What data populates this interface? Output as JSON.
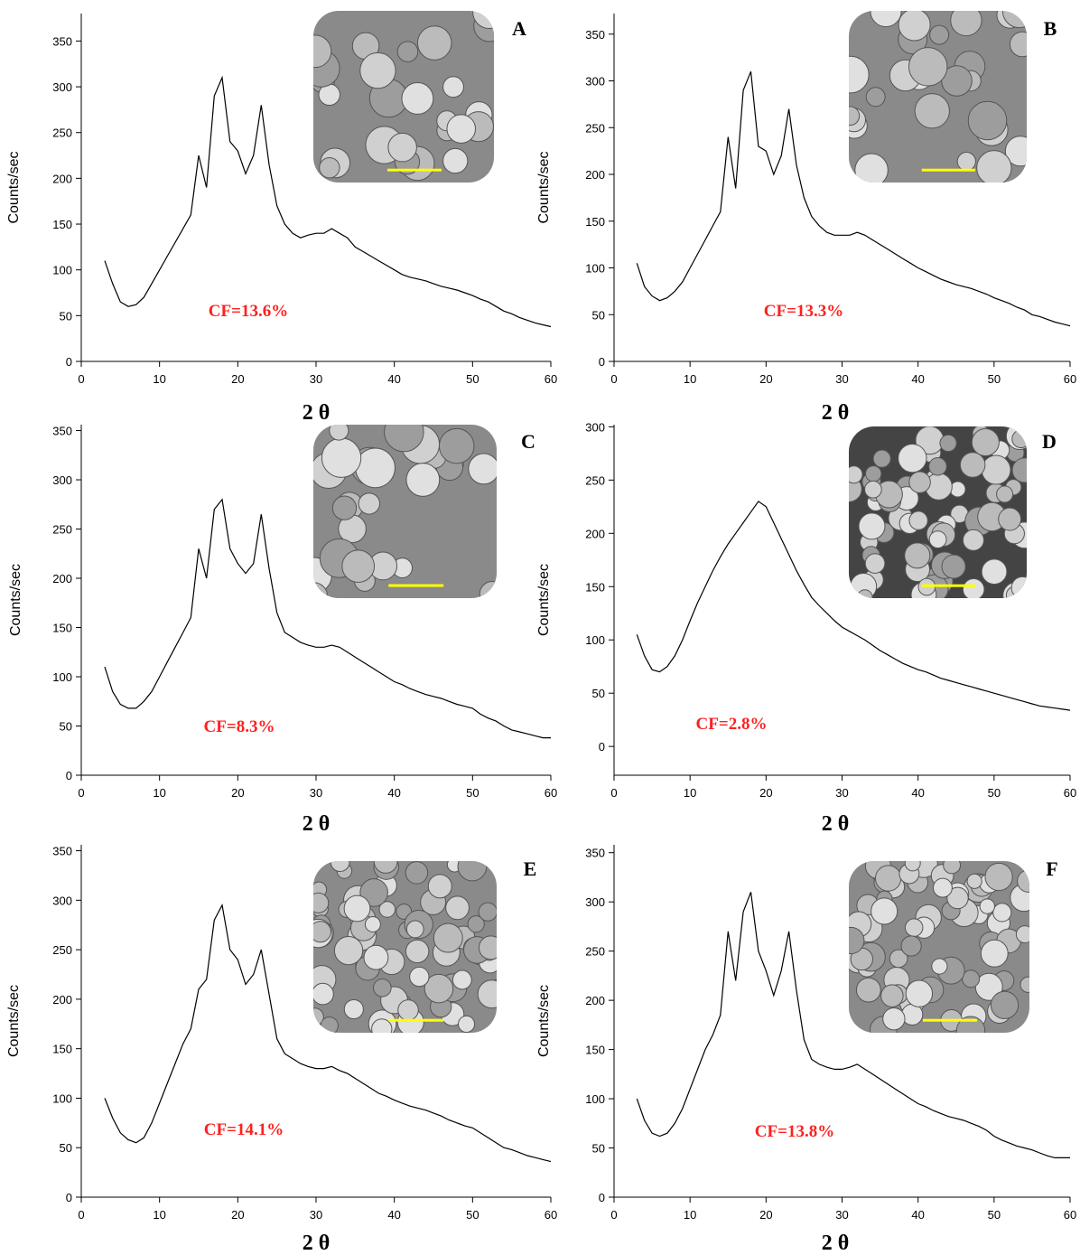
{
  "chart_data": [
    {
      "type": "line",
      "panel_label": "A",
      "annotation": "CF=13.6%",
      "y_label": "Counts/sec",
      "x_label": "2 θ",
      "x": [
        3,
        4,
        5,
        6,
        7,
        8,
        9,
        10,
        11,
        12,
        13,
        14,
        15,
        16,
        17,
        18,
        19,
        20,
        21,
        22,
        23,
        24,
        25,
        26,
        27,
        28,
        29,
        30,
        31,
        32,
        33,
        34,
        35,
        36,
        37,
        38,
        39,
        40,
        41,
        42,
        43,
        44,
        45,
        46,
        47,
        48,
        49,
        50,
        51,
        52,
        53,
        54,
        55,
        56,
        57,
        58,
        59,
        60
      ],
      "series": [
        {
          "color": "#000000",
          "values": [
            110,
            85,
            65,
            60,
            62,
            70,
            85,
            100,
            115,
            130,
            145,
            160,
            225,
            190,
            290,
            310,
            240,
            230,
            205,
            225,
            280,
            215,
            170,
            150,
            140,
            135,
            138,
            140,
            140,
            145,
            140,
            135,
            125,
            120,
            115,
            110,
            105,
            100,
            95,
            92,
            90,
            88,
            85,
            82,
            80,
            78,
            75,
            72,
            68,
            65,
            60,
            55,
            52,
            48,
            45,
            42,
            40,
            38
          ]
        }
      ],
      "xlim": [
        0,
        60
      ],
      "ylim": [
        0,
        380
      ],
      "xticks": [
        0,
        10,
        20,
        30,
        40,
        50,
        60
      ],
      "yticks": [
        0,
        50,
        100,
        150,
        200,
        250,
        300,
        350
      ]
    },
    {
      "type": "line",
      "panel_label": "B",
      "annotation": "CF=13.3%",
      "y_label": "Counts/sec",
      "x_label": "2 θ",
      "x": [
        3,
        4,
        5,
        6,
        7,
        8,
        9,
        10,
        11,
        12,
        13,
        14,
        15,
        16,
        17,
        18,
        19,
        20,
        21,
        22,
        23,
        24,
        25,
        26,
        27,
        28,
        29,
        30,
        31,
        32,
        33,
        34,
        35,
        36,
        37,
        38,
        39,
        40,
        41,
        42,
        43,
        44,
        45,
        46,
        47,
        48,
        49,
        50,
        51,
        52,
        53,
        54,
        55,
        56,
        57,
        58,
        59,
        60
      ],
      "series": [
        {
          "color": "#000000",
          "values": [
            105,
            80,
            70,
            65,
            68,
            75,
            85,
            100,
            115,
            130,
            145,
            160,
            240,
            185,
            290,
            310,
            230,
            225,
            200,
            220,
            270,
            210,
            175,
            155,
            145,
            138,
            135,
            135,
            135,
            138,
            135,
            130,
            125,
            120,
            115,
            110,
            105,
            100,
            96,
            92,
            88,
            85,
            82,
            80,
            78,
            75,
            72,
            68,
            65,
            62,
            58,
            55,
            50,
            48,
            45,
            42,
            40,
            38
          ]
        }
      ],
      "xlim": [
        0,
        60
      ],
      "ylim": [
        0,
        372
      ],
      "xticks": [
        0,
        10,
        20,
        30,
        40,
        50,
        60
      ],
      "yticks": [
        0,
        50,
        100,
        150,
        200,
        250,
        300,
        350
      ]
    },
    {
      "type": "line",
      "panel_label": "C",
      "annotation": "CF=8.3%",
      "y_label": "Counts/sec",
      "x_label": "2 θ",
      "x": [
        3,
        4,
        5,
        6,
        7,
        8,
        9,
        10,
        11,
        12,
        13,
        14,
        15,
        16,
        17,
        18,
        19,
        20,
        21,
        22,
        23,
        24,
        25,
        26,
        27,
        28,
        29,
        30,
        31,
        32,
        33,
        34,
        35,
        36,
        37,
        38,
        39,
        40,
        41,
        42,
        43,
        44,
        45,
        46,
        47,
        48,
        49,
        50,
        51,
        52,
        53,
        54,
        55,
        56,
        57,
        58,
        59,
        60
      ],
      "series": [
        {
          "color": "#000000",
          "values": [
            110,
            85,
            72,
            68,
            68,
            75,
            85,
            100,
            115,
            130,
            145,
            160,
            230,
            200,
            270,
            280,
            230,
            215,
            205,
            215,
            265,
            210,
            165,
            145,
            140,
            135,
            132,
            130,
            130,
            132,
            130,
            125,
            120,
            115,
            110,
            105,
            100,
            95,
            92,
            88,
            85,
            82,
            80,
            78,
            75,
            72,
            70,
            68,
            62,
            58,
            55,
            50,
            46,
            44,
            42,
            40,
            38,
            38
          ]
        }
      ],
      "xlim": [
        0,
        60
      ],
      "ylim": [
        0,
        356
      ],
      "xticks": [
        0,
        10,
        20,
        30,
        40,
        50,
        60
      ],
      "yticks": [
        0,
        50,
        100,
        150,
        200,
        250,
        300,
        350
      ]
    },
    {
      "type": "line",
      "panel_label": "D",
      "annotation": "CF=2.8%",
      "y_label": "Counts/sec",
      "x_label": "2 θ",
      "x": [
        3,
        4,
        5,
        6,
        7,
        8,
        9,
        10,
        11,
        12,
        13,
        14,
        15,
        16,
        17,
        18,
        19,
        20,
        21,
        22,
        23,
        24,
        25,
        26,
        27,
        28,
        29,
        30,
        31,
        32,
        33,
        34,
        35,
        36,
        37,
        38,
        39,
        40,
        41,
        42,
        43,
        44,
        45,
        46,
        47,
        48,
        49,
        50,
        51,
        52,
        53,
        54,
        55,
        56,
        57,
        58,
        59,
        60
      ],
      "series": [
        {
          "color": "#000000",
          "values": [
            105,
            85,
            72,
            70,
            75,
            85,
            100,
            118,
            135,
            150,
            165,
            178,
            190,
            200,
            210,
            220,
            230,
            225,
            210,
            195,
            180,
            165,
            152,
            140,
            132,
            125,
            118,
            112,
            108,
            104,
            100,
            95,
            90,
            86,
            82,
            78,
            75,
            72,
            70,
            67,
            64,
            62,
            60,
            58,
            56,
            54,
            52,
            50,
            48,
            46,
            44,
            42,
            40,
            38,
            37,
            36,
            35,
            34
          ]
        }
      ],
      "xlim": [
        0,
        60
      ],
      "ylim": [
        -27,
        302
      ],
      "xticks": [
        0,
        10,
        20,
        30,
        40,
        50,
        60
      ],
      "yticks": [
        0,
        50,
        100,
        150,
        200,
        250,
        300
      ]
    },
    {
      "type": "line",
      "panel_label": "E",
      "annotation": "CF=14.1%",
      "y_label": "Counts/sec",
      "x_label": "2 θ",
      "x": [
        3,
        4,
        5,
        6,
        7,
        8,
        9,
        10,
        11,
        12,
        13,
        14,
        15,
        16,
        17,
        18,
        19,
        20,
        21,
        22,
        23,
        24,
        25,
        26,
        27,
        28,
        29,
        30,
        31,
        32,
        33,
        34,
        35,
        36,
        37,
        38,
        39,
        40,
        41,
        42,
        43,
        44,
        45,
        46,
        47,
        48,
        49,
        50,
        51,
        52,
        53,
        54,
        55,
        56,
        57,
        58,
        59,
        60
      ],
      "series": [
        {
          "color": "#000000",
          "values": [
            100,
            80,
            65,
            58,
            55,
            60,
            75,
            95,
            115,
            135,
            155,
            170,
            210,
            220,
            280,
            295,
            250,
            240,
            215,
            225,
            250,
            205,
            160,
            145,
            140,
            135,
            132,
            130,
            130,
            132,
            128,
            125,
            120,
            115,
            110,
            105,
            102,
            98,
            95,
            92,
            90,
            88,
            85,
            82,
            78,
            75,
            72,
            70,
            65,
            60,
            55,
            50,
            48,
            45,
            42,
            40,
            38,
            36
          ]
        }
      ],
      "xlim": [
        0,
        60
      ],
      "ylim": [
        0,
        356
      ],
      "xticks": [
        0,
        10,
        20,
        30,
        40,
        50,
        60
      ],
      "yticks": [
        0,
        50,
        100,
        150,
        200,
        250,
        300,
        350
      ]
    },
    {
      "type": "line",
      "panel_label": "F",
      "annotation": "CF=13.8%",
      "y_label": "Counts/sec",
      "x_label": "2 θ",
      "x": [
        3,
        4,
        5,
        6,
        7,
        8,
        9,
        10,
        11,
        12,
        13,
        14,
        15,
        16,
        17,
        18,
        19,
        20,
        21,
        22,
        23,
        24,
        25,
        26,
        27,
        28,
        29,
        30,
        31,
        32,
        33,
        34,
        35,
        36,
        37,
        38,
        39,
        40,
        41,
        42,
        43,
        44,
        45,
        46,
        47,
        48,
        49,
        50,
        51,
        52,
        53,
        54,
        55,
        56,
        57,
        58,
        59,
        60
      ],
      "series": [
        {
          "color": "#000000",
          "values": [
            100,
            78,
            65,
            62,
            65,
            75,
            90,
            110,
            130,
            150,
            165,
            185,
            270,
            220,
            290,
            310,
            250,
            230,
            205,
            230,
            270,
            210,
            160,
            140,
            135,
            132,
            130,
            130,
            132,
            135,
            130,
            125,
            120,
            115,
            110,
            105,
            100,
            95,
            92,
            88,
            85,
            82,
            80,
            78,
            75,
            72,
            68,
            62,
            58,
            55,
            52,
            50,
            48,
            45,
            42,
            40,
            40,
            40
          ]
        }
      ],
      "xlim": [
        0,
        60
      ],
      "ylim": [
        0,
        358
      ],
      "xticks": [
        0,
        10,
        20,
        30,
        40,
        50,
        60
      ],
      "yticks": [
        0,
        50,
        100,
        150,
        200,
        250,
        300,
        350
      ]
    }
  ]
}
